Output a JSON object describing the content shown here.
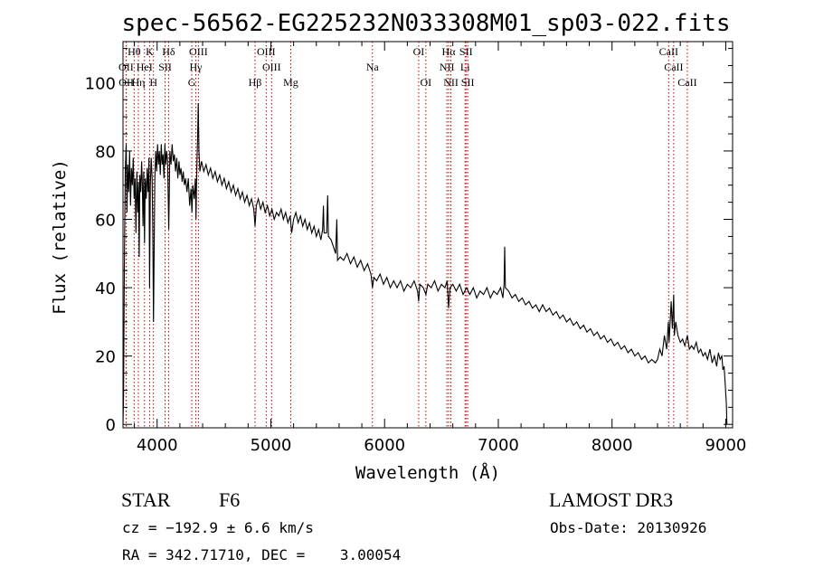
{
  "chart_data": {
    "type": "line",
    "title": "spec-56562-EG225232N033308M01_sp03-022.fits",
    "xlabel": "Wavelength (Å)",
    "ylabel": "Flux (relative)",
    "xlim": [
      3700,
      9060
    ],
    "ylim": [
      -1,
      112
    ],
    "xticks": [
      4000,
      5000,
      6000,
      7000,
      8000,
      9000
    ],
    "yticks": [
      0,
      20,
      40,
      60,
      80,
      100
    ],
    "series": [
      {
        "name": "spectrum",
        "points": [
          [
            3700,
            0
          ],
          [
            3705,
            8
          ],
          [
            3712,
            46
          ],
          [
            3720,
            74
          ],
          [
            3728,
            82
          ],
          [
            3735,
            62
          ],
          [
            3742,
            76
          ],
          [
            3750,
            68
          ],
          [
            3758,
            80
          ],
          [
            3766,
            64
          ],
          [
            3774,
            75
          ],
          [
            3782,
            70
          ],
          [
            3790,
            78
          ],
          [
            3798,
            66
          ],
          [
            3806,
            72
          ],
          [
            3814,
            56
          ],
          [
            3822,
            74
          ],
          [
            3830,
            62
          ],
          [
            3836,
            71
          ],
          [
            3842,
            49
          ],
          [
            3848,
            73
          ],
          [
            3856,
            68
          ],
          [
            3864,
            77
          ],
          [
            3870,
            70
          ],
          [
            3876,
            58
          ],
          [
            3882,
            74
          ],
          [
            3889,
            53
          ],
          [
            3896,
            72
          ],
          [
            3904,
            66
          ],
          [
            3912,
            75
          ],
          [
            3920,
            68
          ],
          [
            3928,
            78
          ],
          [
            3934,
            40
          ],
          [
            3940,
            70
          ],
          [
            3948,
            78
          ],
          [
            3956,
            72
          ],
          [
            3962,
            58
          ],
          [
            3968,
            30
          ],
          [
            3974,
            52
          ],
          [
            3980,
            72
          ],
          [
            3988,
            80
          ],
          [
            3996,
            74
          ],
          [
            4004,
            82
          ],
          [
            4012,
            76
          ],
          [
            4020,
            80
          ],
          [
            4028,
            73
          ],
          [
            4036,
            82
          ],
          [
            4044,
            76
          ],
          [
            4052,
            79
          ],
          [
            4060,
            72
          ],
          [
            4068,
            82
          ],
          [
            4076,
            76
          ],
          [
            4084,
            80
          ],
          [
            4092,
            77
          ],
          [
            4102,
            57
          ],
          [
            4112,
            80
          ],
          [
            4122,
            76
          ],
          [
            4132,
            82
          ],
          [
            4142,
            77
          ],
          [
            4152,
            79
          ],
          [
            4162,
            74
          ],
          [
            4172,
            78
          ],
          [
            4182,
            72
          ],
          [
            4192,
            77
          ],
          [
            4200,
            73
          ],
          [
            4210,
            75
          ],
          [
            4220,
            71
          ],
          [
            4230,
            74
          ],
          [
            4240,
            70
          ],
          [
            4250,
            72
          ],
          [
            4262,
            68
          ],
          [
            4274,
            72
          ],
          [
            4286,
            64
          ],
          [
            4298,
            69
          ],
          [
            4306,
            62
          ],
          [
            4314,
            70
          ],
          [
            4326,
            66
          ],
          [
            4336,
            72
          ],
          [
            4342,
            60
          ],
          [
            4350,
            76
          ],
          [
            4356,
            84
          ],
          [
            4362,
            94
          ],
          [
            4368,
            80
          ],
          [
            4376,
            74
          ],
          [
            4390,
            77
          ],
          [
            4410,
            74
          ],
          [
            4430,
            76
          ],
          [
            4450,
            73
          ],
          [
            4470,
            75
          ],
          [
            4490,
            72
          ],
          [
            4510,
            74
          ],
          [
            4530,
            71
          ],
          [
            4550,
            73
          ],
          [
            4570,
            70
          ],
          [
            4590,
            72
          ],
          [
            4610,
            69
          ],
          [
            4630,
            71
          ],
          [
            4650,
            68
          ],
          [
            4670,
            70
          ],
          [
            4690,
            67
          ],
          [
            4710,
            69
          ],
          [
            4730,
            66
          ],
          [
            4750,
            68
          ],
          [
            4770,
            65
          ],
          [
            4790,
            67
          ],
          [
            4810,
            64
          ],
          [
            4830,
            66
          ],
          [
            4850,
            63
          ],
          [
            4861,
            58
          ],
          [
            4872,
            64
          ],
          [
            4890,
            66
          ],
          [
            4910,
            63
          ],
          [
            4930,
            65
          ],
          [
            4950,
            62
          ],
          [
            4970,
            64
          ],
          [
            4990,
            61
          ],
          [
            5010,
            63
          ],
          [
            5030,
            60
          ],
          [
            5050,
            62
          ],
          [
            5070,
            61
          ],
          [
            5090,
            63
          ],
          [
            5110,
            60
          ],
          [
            5130,
            62
          ],
          [
            5150,
            59
          ],
          [
            5170,
            61
          ],
          [
            5183,
            56
          ],
          [
            5200,
            60
          ],
          [
            5220,
            62
          ],
          [
            5240,
            59
          ],
          [
            5260,
            61
          ],
          [
            5280,
            58
          ],
          [
            5300,
            60
          ],
          [
            5320,
            57
          ],
          [
            5340,
            59
          ],
          [
            5360,
            56
          ],
          [
            5380,
            58
          ],
          [
            5400,
            55
          ],
          [
            5420,
            57
          ],
          [
            5440,
            54
          ],
          [
            5455,
            57
          ],
          [
            5462,
            64
          ],
          [
            5468,
            56
          ],
          [
            5490,
            56
          ],
          [
            5500,
            67
          ],
          [
            5506,
            55
          ],
          [
            5530,
            54
          ],
          [
            5550,
            52
          ],
          [
            5570,
            50
          ],
          [
            5580,
            60
          ],
          [
            5586,
            48
          ],
          [
            5610,
            49
          ],
          [
            5640,
            48
          ],
          [
            5670,
            50
          ],
          [
            5700,
            47
          ],
          [
            5730,
            49
          ],
          [
            5760,
            46
          ],
          [
            5790,
            48
          ],
          [
            5820,
            45
          ],
          [
            5850,
            47
          ],
          [
            5880,
            44
          ],
          [
            5893,
            40
          ],
          [
            5906,
            43
          ],
          [
            5930,
            42
          ],
          [
            5960,
            44
          ],
          [
            5990,
            41
          ],
          [
            6020,
            43
          ],
          [
            6050,
            40
          ],
          [
            6080,
            42
          ],
          [
            6110,
            40
          ],
          [
            6140,
            42
          ],
          [
            6170,
            39
          ],
          [
            6200,
            41
          ],
          [
            6230,
            40
          ],
          [
            6260,
            42
          ],
          [
            6290,
            39
          ],
          [
            6300,
            36
          ],
          [
            6310,
            41
          ],
          [
            6340,
            40
          ],
          [
            6363,
            38
          ],
          [
            6380,
            41
          ],
          [
            6410,
            40
          ],
          [
            6440,
            42
          ],
          [
            6470,
            39
          ],
          [
            6500,
            41
          ],
          [
            6530,
            40
          ],
          [
            6550,
            42
          ],
          [
            6563,
            34
          ],
          [
            6576,
            40
          ],
          [
            6600,
            41
          ],
          [
            6630,
            39
          ],
          [
            6660,
            41
          ],
          [
            6690,
            38
          ],
          [
            6720,
            40
          ],
          [
            6750,
            38
          ],
          [
            6780,
            40
          ],
          [
            6810,
            37
          ],
          [
            6840,
            39
          ],
          [
            6870,
            38
          ],
          [
            6900,
            40
          ],
          [
            6930,
            37
          ],
          [
            6960,
            39
          ],
          [
            6990,
            38
          ],
          [
            7020,
            40
          ],
          [
            7040,
            37
          ],
          [
            7050,
            41
          ],
          [
            7056,
            52
          ],
          [
            7062,
            40
          ],
          [
            7090,
            39
          ],
          [
            7120,
            37
          ],
          [
            7150,
            38
          ],
          [
            7180,
            36
          ],
          [
            7210,
            37
          ],
          [
            7240,
            35
          ],
          [
            7270,
            36
          ],
          [
            7300,
            34
          ],
          [
            7330,
            35
          ],
          [
            7360,
            33
          ],
          [
            7390,
            35
          ],
          [
            7420,
            33
          ],
          [
            7450,
            34
          ],
          [
            7480,
            32
          ],
          [
            7510,
            33
          ],
          [
            7540,
            31
          ],
          [
            7570,
            32
          ],
          [
            7600,
            30
          ],
          [
            7630,
            31
          ],
          [
            7660,
            29
          ],
          [
            7690,
            30
          ],
          [
            7720,
            28
          ],
          [
            7750,
            29
          ],
          [
            7780,
            27
          ],
          [
            7810,
            28
          ],
          [
            7840,
            26
          ],
          [
            7870,
            27
          ],
          [
            7900,
            25
          ],
          [
            7930,
            26
          ],
          [
            7960,
            24
          ],
          [
            7990,
            25
          ],
          [
            8020,
            23
          ],
          [
            8050,
            24
          ],
          [
            8080,
            22
          ],
          [
            8110,
            23
          ],
          [
            8140,
            21
          ],
          [
            8170,
            22
          ],
          [
            8200,
            20
          ],
          [
            8230,
            21
          ],
          [
            8260,
            19
          ],
          [
            8290,
            20
          ],
          [
            8320,
            18
          ],
          [
            8350,
            19
          ],
          [
            8380,
            18
          ],
          [
            8400,
            19
          ],
          [
            8420,
            22
          ],
          [
            8440,
            20
          ],
          [
            8460,
            26
          ],
          [
            8480,
            22
          ],
          [
            8495,
            30
          ],
          [
            8502,
            24
          ],
          [
            8520,
            36
          ],
          [
            8530,
            28
          ],
          [
            8542,
            38
          ],
          [
            8548,
            26
          ],
          [
            8560,
            30
          ],
          [
            8580,
            26
          ],
          [
            8600,
            24
          ],
          [
            8620,
            25
          ],
          [
            8640,
            23
          ],
          [
            8662,
            26
          ],
          [
            8680,
            22
          ],
          [
            8700,
            23
          ],
          [
            8720,
            22
          ],
          [
            8740,
            24
          ],
          [
            8760,
            21
          ],
          [
            8780,
            22
          ],
          [
            8800,
            20
          ],
          [
            8820,
            21
          ],
          [
            8840,
            19
          ],
          [
            8860,
            22
          ],
          [
            8880,
            18
          ],
          [
            8900,
            20
          ],
          [
            8920,
            17
          ],
          [
            8935,
            21
          ],
          [
            8950,
            19
          ],
          [
            8965,
            20
          ],
          [
            8975,
            16
          ],
          [
            8985,
            17
          ],
          [
            8995,
            12
          ],
          [
            9005,
            6
          ],
          [
            9010,
            0
          ]
        ]
      }
    ],
    "lines": [
      {
        "label": "Hθ",
        "wl": 3798,
        "row": 0
      },
      {
        "label": "OII",
        "wl": 3727,
        "row": 1
      },
      {
        "label": "OII",
        "wl": 3729,
        "row": 2
      },
      {
        "label": "Hη",
        "wl": 3835,
        "row": 2
      },
      {
        "label": "HeI",
        "wl": 3889,
        "row": 1
      },
      {
        "label": "K",
        "wl": 3934,
        "row": 0
      },
      {
        "label": "H",
        "wl": 3968,
        "row": 2
      },
      {
        "label": "Hδ",
        "wl": 4101,
        "row": 0
      },
      {
        "label": "SII",
        "wl": 4070,
        "row": 1
      },
      {
        "label": "OIII",
        "wl": 4363,
        "row": 0
      },
      {
        "label": "Hγ",
        "wl": 4340,
        "row": 1
      },
      {
        "label": "G",
        "wl": 4305,
        "row": 2
      },
      {
        "label": "OIII",
        "wl": 4959,
        "row": 0
      },
      {
        "label": "OIII",
        "wl": 5007,
        "row": 1
      },
      {
        "label": "Hβ",
        "wl": 4861,
        "row": 2
      },
      {
        "label": "Mg",
        "wl": 5175,
        "row": 2
      },
      {
        "label": "Na",
        "wl": 5893,
        "row": 1
      },
      {
        "label": "OI",
        "wl": 6300,
        "row": 0
      },
      {
        "label": "OI",
        "wl": 6363,
        "row": 2
      },
      {
        "label": "Hα",
        "wl": 6563,
        "row": 0
      },
      {
        "label": "SII",
        "wl": 6716,
        "row": 0
      },
      {
        "label": "NII",
        "wl": 6548,
        "row": 1
      },
      {
        "label": "Li",
        "wl": 6708,
        "row": 1
      },
      {
        "label": "NII",
        "wl": 6583,
        "row": 2
      },
      {
        "label": "SII",
        "wl": 6731,
        "row": 2
      },
      {
        "label": "CaII",
        "wl": 8498,
        "row": 0
      },
      {
        "label": "CaII",
        "wl": 8542,
        "row": 1
      },
      {
        "label": "CaII",
        "wl": 8662,
        "row": 2
      }
    ]
  },
  "info": {
    "class": "STAR",
    "subclass": "F6",
    "survey": "LAMOST DR3",
    "cz": "cz = −192.9 ± 6.6 km/s",
    "obsdate": "Obs-Date: 20130926",
    "radec": "RA = 342.71710, DEC =    3.00054"
  },
  "colors": {
    "spectrum": "#000000",
    "line_marker": "#c00000",
    "axes": "#000000"
  }
}
